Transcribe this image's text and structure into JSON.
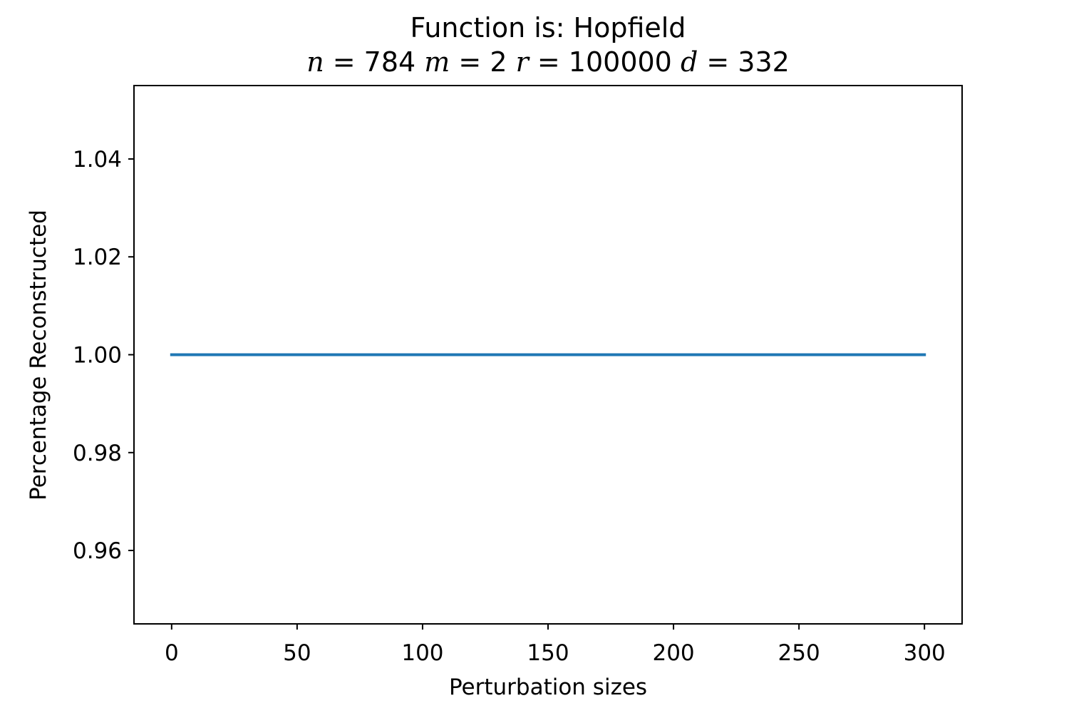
{
  "chart_data": {
    "type": "line",
    "title": "Function is: Hopfield",
    "subtitle": {
      "n_label": "n",
      "n_value": "784",
      "m_label": "m",
      "m_value": "2",
      "r_label": "r",
      "r_value": "100000",
      "d_label": "d",
      "d_value": "332"
    },
    "xlabel": "Perturbation sizes",
    "ylabel": "Percentage Reconstructed",
    "xlim": [
      -15,
      315
    ],
    "ylim": [
      0.945,
      1.055
    ],
    "xticks": [
      0,
      50,
      100,
      150,
      200,
      250,
      300
    ],
    "xtick_labels": [
      "0",
      "50",
      "100",
      "150",
      "200",
      "250",
      "300"
    ],
    "yticks": [
      0.96,
      0.98,
      1.0,
      1.02,
      1.04
    ],
    "ytick_labels": [
      "0.96",
      "0.98",
      "1.00",
      "1.02",
      "1.04"
    ],
    "grid": false,
    "series": [
      {
        "x": [
          0,
          50,
          100,
          150,
          200,
          250,
          300
        ],
        "y": [
          1.0,
          1.0,
          1.0,
          1.0,
          1.0,
          1.0,
          1.0
        ],
        "color": "#1f77b4"
      }
    ]
  }
}
